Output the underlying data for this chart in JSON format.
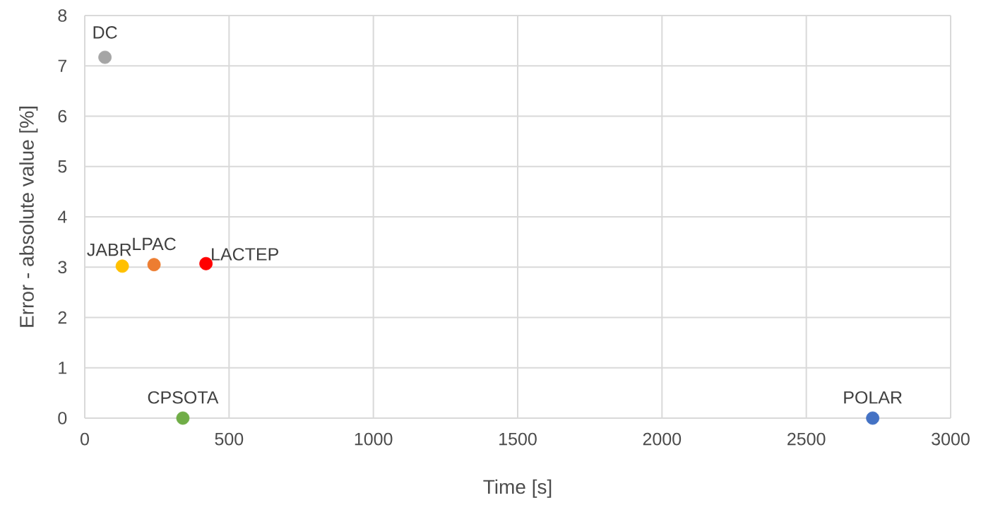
{
  "chart_data": {
    "type": "scatter",
    "xlabel": "Time [s]",
    "ylabel": "Error - absolute value [%]",
    "xlim": [
      0,
      3000
    ],
    "ylim": [
      0,
      8
    ],
    "xticks": [
      0,
      500,
      1000,
      1500,
      2000,
      2500,
      3000
    ],
    "yticks": [
      0,
      1,
      2,
      3,
      4,
      5,
      6,
      7,
      8
    ],
    "grid": true,
    "legend": false,
    "marker": "circle",
    "series": [
      {
        "name": "DC",
        "color": "#a5a5a5",
        "x": [
          70
        ],
        "values": [
          7.17
        ]
      },
      {
        "name": "JABR",
        "color": "#ffc000",
        "x": [
          130
        ],
        "values": [
          3.02
        ]
      },
      {
        "name": "LPAC",
        "color": "#ed7d31",
        "x": [
          240
        ],
        "values": [
          3.05
        ]
      },
      {
        "name": "LACTEP",
        "color": "#ff0000",
        "x": [
          420
        ],
        "values": [
          3.07
        ]
      },
      {
        "name": "CPSOTA",
        "color": "#70ad47",
        "x": [
          340
        ],
        "values": [
          0
        ]
      },
      {
        "name": "POLAR",
        "color": "#4472c4",
        "x": [
          2730
        ],
        "values": [
          0
        ]
      }
    ]
  }
}
